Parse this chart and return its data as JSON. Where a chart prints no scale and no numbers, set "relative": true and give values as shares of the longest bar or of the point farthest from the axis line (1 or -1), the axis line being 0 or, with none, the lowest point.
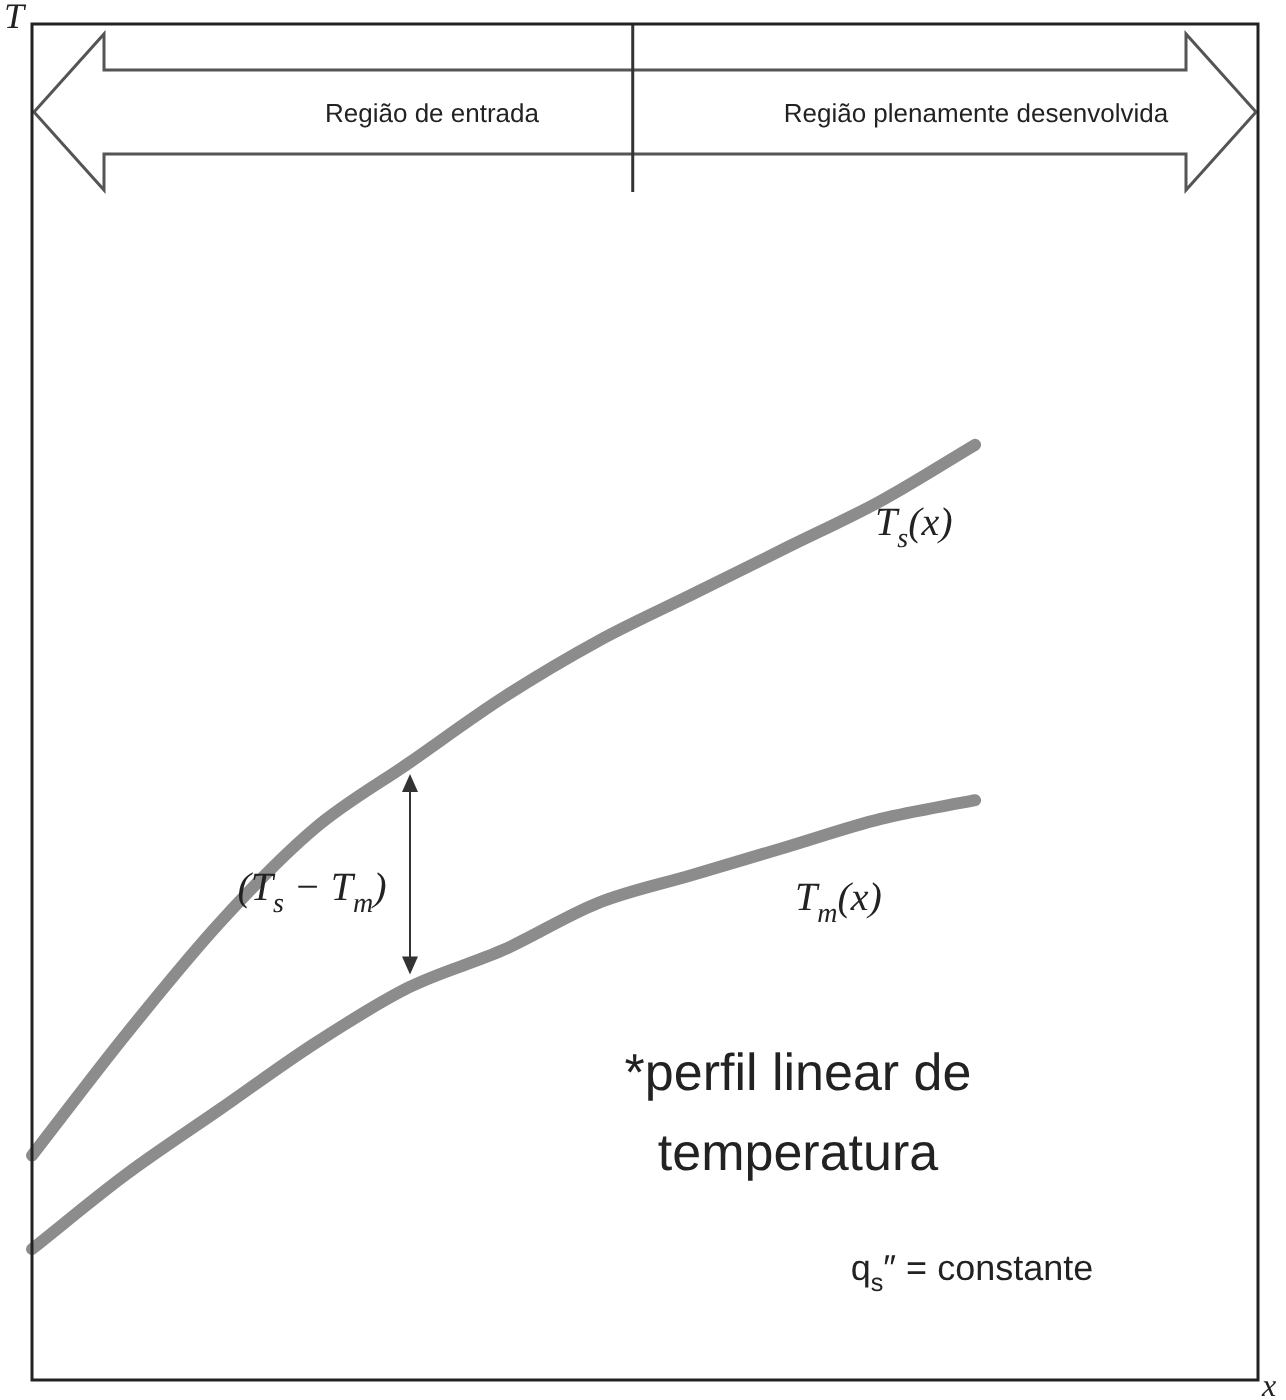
{
  "chart_data": {
    "type": "line",
    "relative": true,
    "xlabel": "x",
    "categories": [
      null,
      null,
      null,
      null,
      null,
      null,
      null,
      null,
      null,
      null,
      null,
      null,
      null,
      null
    ],
    "series": [
      {
        "name": "T$_{s}$(x)",
        "color": "#8c8c8c",
        "values": [
          0.24,
          0.37,
          0.49,
          0.59,
          0.66,
          0.73,
          0.79,
          0.84,
          0.89,
          0.94,
          1.0,
          null,
          null,
          null
        ]
      },
      {
        "name": "T$_{m}$(x)",
        "color": "#8c8c8c",
        "values": [
          0.14,
          0.22,
          0.29,
          0.36,
          0.42,
          0.46,
          0.51,
          0.54,
          0.57,
          0.6,
          0.62,
          null,
          null,
          null
        ]
      }
    ],
    "annotations": [
      "Região de entrada",
      "Região plenamente desenvolvida",
      "(T$_{s}$ − T$_{m}$)",
      "*perfil linear de temperatura",
      "q$_{s}$″ = constante",
      "T"
    ],
    "legend": false,
    "marker": "none",
    "line_style": "solid"
  }
}
